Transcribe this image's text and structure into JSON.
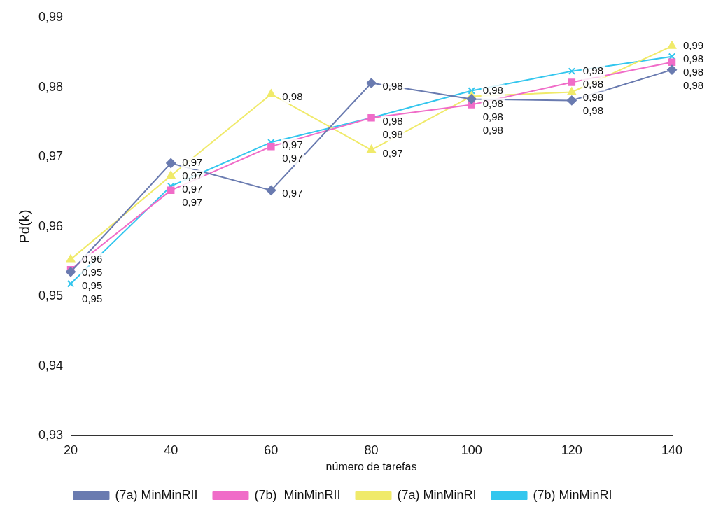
{
  "chart_data": {
    "type": "line",
    "xlabel": "número de tarefas",
    "ylabel": "Pd(k)",
    "categories": [
      "20",
      "40",
      "60",
      "80",
      "100",
      "120",
      "140"
    ],
    "ylim": [
      0.93,
      0.99
    ],
    "yticks": [
      {
        "value": 0.93,
        "label": "0,93"
      },
      {
        "value": 0.94,
        "label": "0,94"
      },
      {
        "value": 0.95,
        "label": "0,95"
      },
      {
        "value": 0.96,
        "label": "0,96"
      },
      {
        "value": 0.97,
        "label": "0,97"
      },
      {
        "value": 0.98,
        "label": "0,98"
      },
      {
        "value": 0.99,
        "label": "0,99"
      }
    ],
    "grid": false,
    "legend": "bottom",
    "series": [
      {
        "name": "(7a) MinMinRII",
        "color": "#6a7bb0",
        "marker": "diamond",
        "values": [
          0.9535,
          0.9691,
          0.9652,
          0.9806,
          0.9783,
          0.9781,
          0.9825
        ],
        "value_labels": [
          "0,95",
          "0,97",
          "0,97",
          "0,98",
          "0,98",
          "0,98",
          "0,98"
        ]
      },
      {
        "name": "(7b)  MinMinRII",
        "color": "#f06cc8",
        "marker": "square",
        "values": [
          0.9538,
          0.9652,
          0.9715,
          0.9756,
          0.9775,
          0.9807,
          0.9836
        ],
        "value_labels": [
          "0,95",
          "0,97",
          "0,97",
          "0,98",
          "0,98",
          "0,98",
          "0,98"
        ]
      },
      {
        "name": "(7a) MinMinRI",
        "color": "#f0ea6a",
        "marker": "triangle",
        "values": [
          0.9553,
          0.9673,
          0.979,
          0.971,
          0.9787,
          0.9793,
          0.9859
        ],
        "value_labels": [
          "0,96",
          "0,97",
          "0,98",
          "0,97",
          "0,98",
          "0,98",
          "0,99"
        ]
      },
      {
        "name": "(7b) MinMinRI",
        "color": "#33c6ee",
        "marker": "cross",
        "values": [
          0.9518,
          0.9658,
          0.9721,
          0.9756,
          0.9795,
          0.9823,
          0.9844
        ],
        "value_labels": [
          "0,95",
          "0,97",
          "0,97",
          "0,98",
          "0,98",
          "0,98",
          "0,98"
        ]
      }
    ]
  }
}
